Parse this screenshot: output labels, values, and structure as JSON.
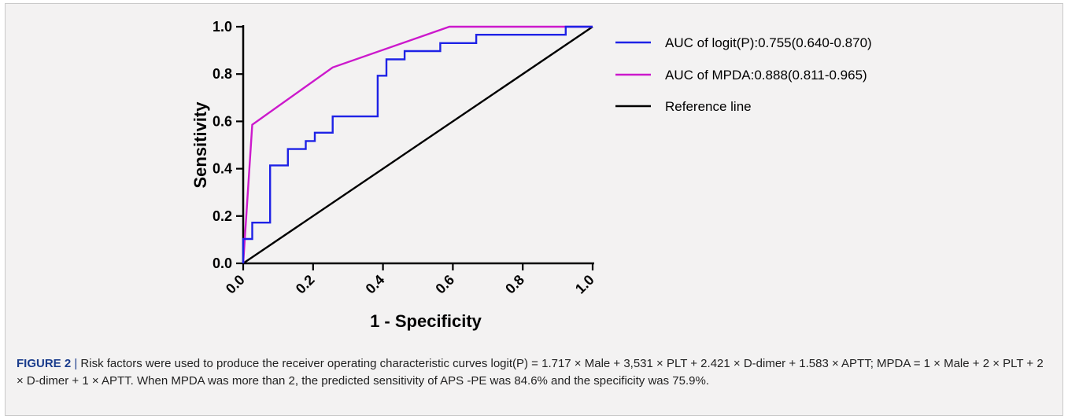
{
  "figure": {
    "label": "FIGURE 2",
    "separator": " | ",
    "caption": "Risk factors were used to produce the receiver operating characteristic curves logit(P) = 1.717 × Male + 3,531 × PLT + 2.421 × D-dimer + 1.583 × APTT; MPDA = 1 × Male + 2 × PLT + 2 × D-dimer + 1 × APTT. When MPDA was more than 2, the predicted sensitivity of APS -PE was 84.6% and the specificity was 75.9%."
  },
  "chart_data": {
    "type": "line",
    "title": "",
    "xlabel": "1 - Specificity",
    "ylabel": "Sensitivity",
    "xlim": [
      0,
      1
    ],
    "ylim": [
      0,
      1
    ],
    "xticks": [
      "0.0",
      "0.2",
      "0.4",
      "0.6",
      "0.8",
      "1.0"
    ],
    "yticks": [
      "0.0",
      "0.2",
      "0.4",
      "0.6",
      "0.8",
      "1.0"
    ],
    "grid": false,
    "legend_position": "right",
    "series": [
      {
        "name": "AUC of logit(P):0.755(0.640-0.870)",
        "color": "#1e22e6",
        "x": [
          0.0,
          0.0,
          0.026,
          0.026,
          0.077,
          0.077,
          0.128,
          0.128,
          0.179,
          0.179,
          0.205,
          0.205,
          0.256,
          0.256,
          0.385,
          0.385,
          0.41,
          0.41,
          0.462,
          0.462,
          0.564,
          0.564,
          0.667,
          0.667,
          0.923,
          0.923,
          1.0
        ],
        "y": [
          0.0,
          0.103,
          0.103,
          0.172,
          0.172,
          0.414,
          0.414,
          0.483,
          0.483,
          0.517,
          0.517,
          0.552,
          0.552,
          0.621,
          0.621,
          0.793,
          0.793,
          0.862,
          0.862,
          0.897,
          0.897,
          0.931,
          0.931,
          0.966,
          0.966,
          1.0,
          1.0
        ]
      },
      {
        "name": "AUC of MPDA:0.888(0.811-0.965)",
        "color": "#cc19cc",
        "x": [
          0.0,
          0.026,
          0.256,
          0.59,
          1.0
        ],
        "y": [
          0.0,
          0.586,
          0.828,
          1.0,
          1.0
        ]
      },
      {
        "name": "Reference line",
        "color": "#000000",
        "x": [
          0.0,
          1.0
        ],
        "y": [
          0.0,
          1.0
        ]
      }
    ]
  }
}
